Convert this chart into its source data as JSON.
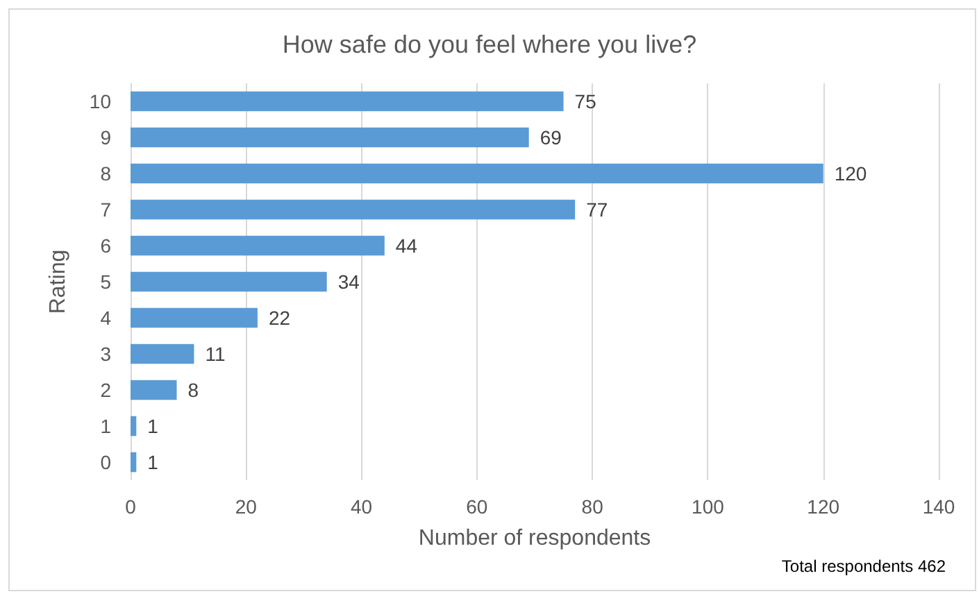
{
  "chart_data": {
    "type": "bar",
    "orientation": "horizontal",
    "title": "How safe do you feel where you live?",
    "xlabel": "Number of respondents",
    "ylabel": "Rating",
    "categories": [
      "10",
      "9",
      "8",
      "7",
      "6",
      "5",
      "4",
      "3",
      "2",
      "1",
      "0"
    ],
    "values": [
      75,
      69,
      120,
      77,
      44,
      34,
      22,
      11,
      8,
      1,
      1
    ],
    "color": "#5b9bd5",
    "xlim": [
      0,
      140
    ],
    "xticks": [
      0,
      20,
      40,
      60,
      80,
      100,
      120,
      140
    ],
    "grid": "x",
    "data_labels": true,
    "annotations": [
      "Total respondents 462"
    ]
  }
}
